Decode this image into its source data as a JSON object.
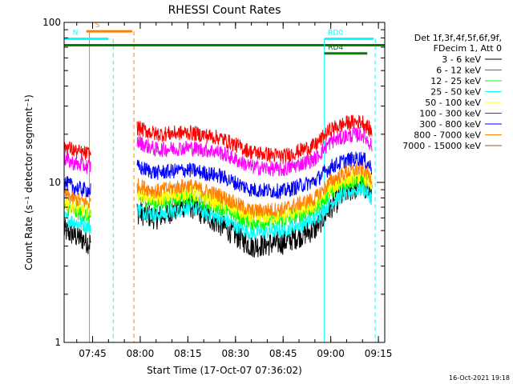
{
  "chart_data": {
    "type": "line",
    "title": "RHESSI Count Rates",
    "xlabel": "Start Time (17-Oct-07 07:36:02)",
    "ylabel": "Count Rate (s⁻¹ detector segment⁻¹)",
    "y_scale": "log",
    "ylim": [
      1,
      100
    ],
    "xlim": [
      "07:36:02",
      "09:17:00"
    ],
    "x_ticks": [
      "07:45",
      "08:00",
      "08:15",
      "08:30",
      "08:45",
      "09:00",
      "09:15"
    ],
    "y_ticks": [
      "1",
      "10",
      "100"
    ],
    "legend_header": [
      "Det 1f,3f,4f,5f,6f,9f,",
      "FDecim 1, Att 0"
    ],
    "legend_position": "right",
    "timestamp": "16-Oct-2021 19:18",
    "data_gaps": [
      [
        "07:44:30",
        "07:59:00"
      ],
      [
        "09:13:30",
        "09:17:00"
      ]
    ],
    "series": [
      {
        "name": "3 - 6 keV",
        "color": "#000000",
        "x": [
          "07:36",
          "07:40",
          "07:44",
          "07:59",
          "08:05",
          "08:15",
          "08:25",
          "08:35",
          "08:45",
          "08:55",
          "09:00",
          "09:05",
          "09:10",
          "09:13"
        ],
        "values": [
          5.0,
          4.6,
          4.2,
          6.5,
          6.0,
          7.3,
          5.5,
          4.0,
          4.2,
          5.1,
          7.0,
          8.8,
          9.6,
          8.5
        ]
      },
      {
        "name": "6 - 12 keV",
        "color": "#ff00ff",
        "x": [
          "07:36",
          "07:40",
          "07:44",
          "07:59",
          "08:05",
          "08:15",
          "08:25",
          "08:35",
          "08:45",
          "08:55",
          "09:00",
          "09:05",
          "09:10",
          "09:13"
        ],
        "values": [
          14.0,
          13.0,
          12.5,
          18.0,
          16.0,
          16.5,
          15.5,
          12.5,
          12.0,
          14.0,
          18.0,
          19.5,
          20.0,
          17.0
        ]
      },
      {
        "name": "12 - 25 keV",
        "color": "#00ff00",
        "x": [
          "07:36",
          "07:40",
          "07:44",
          "07:59",
          "08:05",
          "08:15",
          "08:25",
          "08:35",
          "08:45",
          "08:55",
          "09:00",
          "09:05",
          "09:10",
          "09:13"
        ],
        "values": [
          7.0,
          6.5,
          6.2,
          8.0,
          7.4,
          8.2,
          7.0,
          5.6,
          5.8,
          6.8,
          8.8,
          10.0,
          10.5,
          9.2
        ]
      },
      {
        "name": "25 - 50 keV",
        "color": "#00ffff",
        "x": [
          "07:36",
          "07:40",
          "07:44",
          "07:59",
          "08:05",
          "08:15",
          "08:25",
          "08:35",
          "08:45",
          "08:55",
          "09:00",
          "09:05",
          "09:10",
          "09:13"
        ],
        "values": [
          6.0,
          5.6,
          5.3,
          6.8,
          6.2,
          7.0,
          6.0,
          4.8,
          5.0,
          5.9,
          7.5,
          8.6,
          9.2,
          8.0
        ]
      },
      {
        "name": "50 - 100 keV",
        "color": "#ffff00",
        "x": [
          "07:36",
          "07:40",
          "07:44",
          "07:59",
          "08:05",
          "08:15",
          "08:25",
          "08:35",
          "08:45",
          "08:55",
          "09:00",
          "09:05",
          "09:10",
          "09:13"
        ],
        "values": [
          7.6,
          7.0,
          6.7,
          8.6,
          7.9,
          8.7,
          7.5,
          6.0,
          6.2,
          7.2,
          9.3,
          10.5,
          11.1,
          9.7
        ]
      },
      {
        "name": "100 - 300 keV",
        "color": "#ff0000",
        "x": [
          "07:36",
          "07:40",
          "07:44",
          "07:59",
          "08:05",
          "08:15",
          "08:25",
          "08:35",
          "08:45",
          "08:55",
          "09:00",
          "09:05",
          "09:10",
          "09:13"
        ],
        "values": [
          17.0,
          15.5,
          15.0,
          22.0,
          20.0,
          20.5,
          19.0,
          15.5,
          14.5,
          17.0,
          21.5,
          23.5,
          24.0,
          20.5
        ]
      },
      {
        "name": "300 - 800 keV",
        "color": "#0000ff",
        "x": [
          "07:36",
          "07:40",
          "07:44",
          "07:59",
          "08:05",
          "08:15",
          "08:25",
          "08:35",
          "08:45",
          "08:55",
          "09:00",
          "09:05",
          "09:10",
          "09:13"
        ],
        "values": [
          10.0,
          9.2,
          8.9,
          12.5,
          11.5,
          12.0,
          11.0,
          9.0,
          8.8,
          10.2,
          12.5,
          13.8,
          14.2,
          12.3
        ]
      },
      {
        "name": "800 - 7000 keV",
        "color": "#ff8000",
        "x": [
          "07:36",
          "07:40",
          "07:44",
          "07:59",
          "08:05",
          "08:15",
          "08:25",
          "08:35",
          "08:45",
          "08:55",
          "09:00",
          "09:05",
          "09:10",
          "09:13"
        ],
        "values": [
          8.4,
          7.8,
          7.4,
          9.6,
          8.8,
          9.6,
          8.3,
          6.6,
          6.8,
          7.9,
          10.2,
          11.6,
          12.2,
          10.6
        ]
      },
      {
        "name": "7000 - 15000 keV",
        "color": "#8b5a2b",
        "x": [],
        "values": []
      }
    ],
    "annotations": [
      {
        "text": "S",
        "kind": "SAA interval",
        "color": "#ff8000",
        "start": "07:43:00",
        "end": "07:57:30",
        "y": 88,
        "marker_lines": [
          {
            "time": "07:44:00",
            "style": "solid"
          },
          {
            "time": "07:58:00",
            "style": "dashed"
          }
        ]
      },
      {
        "text": "N",
        "kind": "night interval",
        "color": "#00ffff",
        "start": "07:36:02",
        "end": "07:50:00",
        "y": 79,
        "marker_lines": [
          {
            "time": "07:51:30",
            "style": "dashed"
          }
        ]
      },
      {
        "text": "",
        "kind": "attenuator state",
        "color": "#008000",
        "start": "07:36:02",
        "end": "09:17:00",
        "y": 72
      },
      {
        "text": "RD0",
        "kind": "data interval",
        "color": "#00ffff",
        "start": "08:58:00",
        "end": "09:13:30",
        "y": 79,
        "marker_lines": [
          {
            "time": "08:58:00",
            "style": "solid"
          },
          {
            "time": "09:14:00",
            "style": "dashed"
          }
        ]
      },
      {
        "text": "RD4",
        "kind": "data interval",
        "color": "#008000",
        "start": "08:58:00",
        "end": "09:11:30",
        "y": 64
      },
      {
        "text": "",
        "kind": "data interval",
        "color": "#008000",
        "start": "09:12:00",
        "end": "09:13:30",
        "y": 72
      }
    ]
  }
}
